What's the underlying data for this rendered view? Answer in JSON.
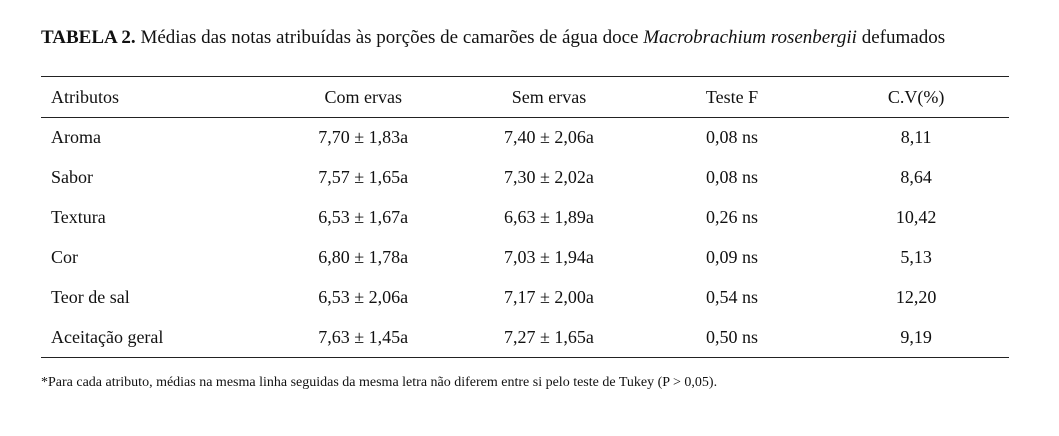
{
  "caption": {
    "label": "TABELA 2.",
    "text_before": " Médias das notas atribuídas às porções de camarões de água doce ",
    "species": "Macrobrachium rosenbergii",
    "text_after": " defumados"
  },
  "table": {
    "headers": [
      "Atributos",
      "Com ervas",
      "Sem ervas",
      "Teste F",
      "C.V(%)"
    ],
    "rows": [
      [
        "Aroma",
        "7,70 ± 1,83a",
        "7,40 ± 2,06a",
        "0,08 ns",
        "8,11"
      ],
      [
        "Sabor",
        "7,57 ± 1,65a",
        "7,30 ± 2,02a",
        "0,08 ns",
        "8,64"
      ],
      [
        "Textura",
        "6,53 ± 1,67a",
        "6,63 ± 1,89a",
        "0,26 ns",
        "10,42"
      ],
      [
        "Cor",
        "6,80 ± 1,78a",
        "7,03 ± 1,94a",
        "0,09 ns",
        "5,13"
      ],
      [
        "Teor de sal",
        "6,53 ± 2,06a",
        "7,17 ± 2,00a",
        "0,54 ns",
        "12,20"
      ],
      [
        "Aceitação geral",
        "7,63 ± 1,45a",
        "7,27 ± 1,65a",
        "0,50 ns",
        "9,19"
      ]
    ]
  },
  "footnote": "*Para cada atributo, médias na mesma linha seguidas da mesma letra não diferem entre si pelo teste de Tukey (P > 0,05)."
}
